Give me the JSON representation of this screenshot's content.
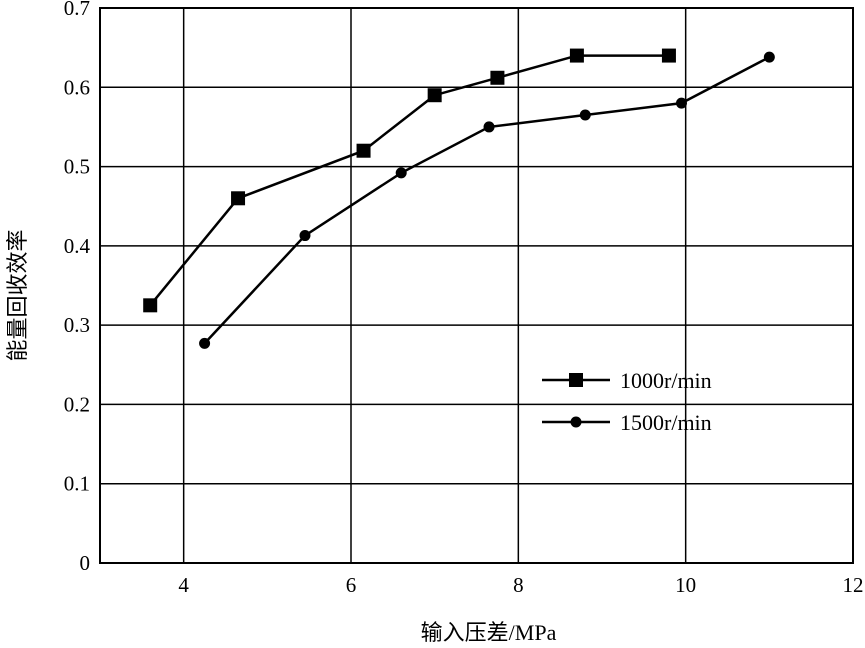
{
  "chart_data": {
    "type": "line",
    "xlabel": "输入压差/MPa",
    "ylabel": "能量回收效率",
    "xlim": [
      3,
      12
    ],
    "ylim": [
      0,
      0.7
    ],
    "xticks": [
      4,
      6,
      8,
      10,
      12
    ],
    "xtick_labels": [
      "4",
      "6",
      "8",
      "10",
      "12"
    ],
    "yticks": [
      0,
      0.1,
      0.2,
      0.3,
      0.4,
      0.5,
      0.6,
      0.7
    ],
    "ytick_labels": [
      "0",
      "0.1",
      "0.2",
      "0.3",
      "0.4",
      "0.5",
      "0.6",
      "0.7"
    ],
    "grid": true,
    "legend_position": "center-right",
    "series": [
      {
        "name": "1000r/min",
        "marker": "square",
        "x": [
          3.6,
          4.65,
          6.15,
          7.0,
          7.75,
          8.7,
          9.8
        ],
        "y": [
          0.325,
          0.46,
          0.52,
          0.59,
          0.612,
          0.64,
          0.64
        ]
      },
      {
        "name": "1500r/min",
        "marker": "circle",
        "x": [
          4.25,
          5.45,
          6.6,
          7.65,
          8.8,
          9.95,
          11.0
        ],
        "y": [
          0.277,
          0.413,
          0.492,
          0.55,
          0.565,
          0.58,
          0.638
        ]
      }
    ]
  }
}
